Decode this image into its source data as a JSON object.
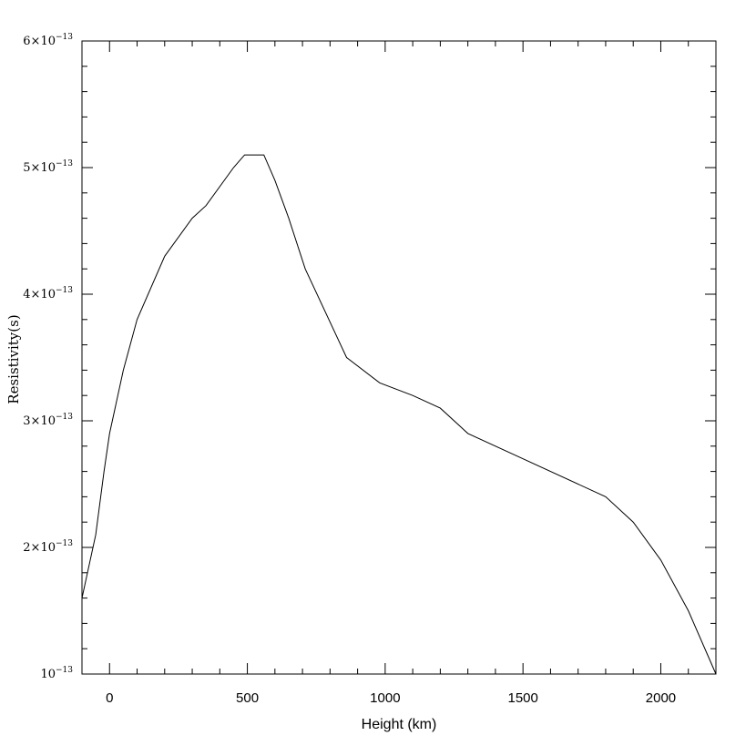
{
  "chart_data": {
    "type": "line",
    "title": "",
    "xlabel": "Height (km)",
    "ylabel": "Resistivity(s)",
    "xlim": [
      -100,
      2200
    ],
    "ylim": [
      1e-13,
      6e-13
    ],
    "x_ticks": [
      0,
      500,
      1000,
      1500,
      2000
    ],
    "x_tick_labels": [
      "0",
      "500",
      "1000",
      "1500",
      "2000"
    ],
    "y_ticks": [
      {
        "mantissa": "",
        "exponent": "10",
        "power": "−13",
        "value": 1e-13
      },
      {
        "mantissa": "2",
        "exponent": "10",
        "power": "−13",
        "value": 2e-13
      },
      {
        "mantissa": "3",
        "exponent": "10",
        "power": "−13",
        "value": 3e-13
      },
      {
        "mantissa": "4",
        "exponent": "10",
        "power": "−13",
        "value": 4e-13
      },
      {
        "mantissa": "5",
        "exponent": "10",
        "power": "−13",
        "value": 5e-13
      },
      {
        "mantissa": "6",
        "exponent": "10",
        "power": "−13",
        "value": 6e-13
      }
    ],
    "x_minor_step": 100,
    "y_minor_step": 2e-14,
    "grid": false,
    "line_color": "#000000",
    "series": [
      {
        "x": [
          -100,
          -50,
          -20,
          0,
          50,
          100,
          200,
          300,
          350,
          450,
          490,
          560,
          600,
          650,
          710,
          860,
          980,
          1100,
          1200,
          1300,
          1500,
          1800,
          1900,
          2000,
          2100,
          2200
        ],
        "y": [
          1.6e-13,
          2.1e-13,
          2.6e-13,
          2.9e-13,
          3.4e-13,
          3.8e-13,
          4.3e-13,
          4.6e-13,
          4.7e-13,
          5e-13,
          5.1e-13,
          5.1e-13,
          4.9e-13,
          4.6e-13,
          4.2e-13,
          3.5e-13,
          3.3e-13,
          3.2e-13,
          3.1e-13,
          2.9e-13,
          2.7e-13,
          2.4e-13,
          2.2e-13,
          1.9e-13,
          1.5e-13,
          1e-13
        ]
      }
    ]
  }
}
